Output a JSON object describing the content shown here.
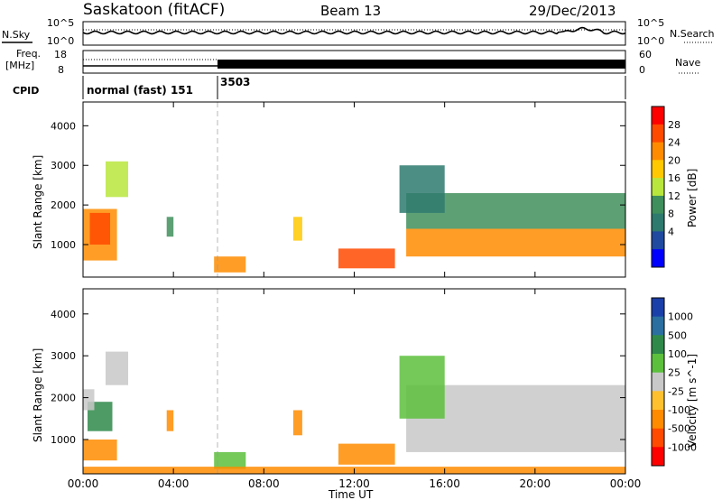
{
  "header": {
    "title": "Saskatoon (fitACF)",
    "beam": "Beam 13",
    "date": "29/Dec/2013"
  },
  "strip_labels": {
    "nsky": "N.Sky",
    "nsearch": "N.Search",
    "freq_top": "Freq.",
    "freq_unit": "[MHz]",
    "nave": "Nave",
    "cpid": "CPID",
    "nsky_top_tick": "10^5",
    "nsky_bottom_tick": "10^0",
    "nsearch_top_tick": "10^5",
    "nsearch_bottom_tick": "10^0",
    "freq_top_tick": "18",
    "freq_bottom_tick": "8",
    "nave_top_tick": "60",
    "nave_bottom_tick": "0"
  },
  "cpid_segments": [
    {
      "label": "normal (fast) 151",
      "start_hour": 0,
      "end_hour": 6
    },
    {
      "label": "3503",
      "start_hour": 6,
      "end_hour": 24
    }
  ],
  "axes": {
    "xlabel": "Time UT",
    "ylabel": "Slant Range [km]",
    "x_ticks": [
      "00:00",
      "04:00",
      "08:00",
      "12:00",
      "16:00",
      "20:00",
      "00:00"
    ],
    "y_ticks": [
      "1000",
      "2000",
      "3000",
      "4000"
    ]
  },
  "colorbars": {
    "power": {
      "label": "Power [dB]",
      "ticks": [
        "28",
        "24",
        "20",
        "16",
        "12",
        "8",
        "4"
      ],
      "colors": [
        "#ff0000",
        "#ff4a00",
        "#ff8c00",
        "#ffc800",
        "#b9e63c",
        "#3f8f5c",
        "#2e7a6e",
        "#1f4aa0",
        "#0000ff"
      ]
    },
    "velocity": {
      "label": "Velocity [m s^-1]",
      "ticks": [
        "1000",
        "500",
        "100",
        "25",
        "-25",
        "-100",
        "-500",
        "-1000"
      ],
      "colors": [
        "#1b3fa8",
        "#2a6fa0",
        "#2f8a4a",
        "#5cc03c",
        "#c8c8c8",
        "#ffc030",
        "#ff8c00",
        "#ff4a00",
        "#ff0000"
      ]
    }
  },
  "chart_data": [
    {
      "type": "heatmap",
      "title": "Power [dB]",
      "xlabel": "Time UT",
      "ylabel": "Slant Range [km]",
      "xlim": [
        0,
        24
      ],
      "ylim": [
        180,
        4600
      ],
      "zlim": [
        0,
        30
      ],
      "regions": [
        {
          "t0": 0.0,
          "t1": 1.5,
          "r0": 600,
          "r1": 1900,
          "value": 22
        },
        {
          "t0": 0.3,
          "t1": 1.2,
          "r0": 1000,
          "r1": 1800,
          "value": 27
        },
        {
          "t0": 1.0,
          "t1": 2.0,
          "r0": 2200,
          "r1": 3100,
          "value": 14
        },
        {
          "t0": 3.7,
          "t1": 4.0,
          "r0": 1200,
          "r1": 1700,
          "value": 10
        },
        {
          "t0": 5.8,
          "t1": 7.2,
          "r0": 300,
          "r1": 700,
          "value": 24
        },
        {
          "t0": 9.3,
          "t1": 9.7,
          "r0": 1100,
          "r1": 1700,
          "value": 18
        },
        {
          "t0": 11.3,
          "t1": 13.8,
          "r0": 400,
          "r1": 900,
          "value": 26
        },
        {
          "t0": 14.3,
          "t1": 24.0,
          "r0": 700,
          "r1": 1400,
          "value": 24
        },
        {
          "t0": 14.3,
          "t1": 24.0,
          "r0": 1400,
          "r1": 2300,
          "value": 12
        },
        {
          "t0": 14.0,
          "t1": 16.0,
          "r0": 1800,
          "r1": 3000,
          "value": 8
        }
      ]
    },
    {
      "type": "heatmap",
      "title": "Velocity [m s^-1]",
      "xlabel": "Time UT",
      "ylabel": "Slant Range [km]",
      "xlim": [
        0,
        24
      ],
      "ylim": [
        180,
        4600
      ],
      "zlim": [
        -1000,
        1000
      ],
      "regions": [
        {
          "t0": 0.0,
          "t1": 1.5,
          "r0": 500,
          "r1": 1000,
          "value": -200
        },
        {
          "t0": 0.2,
          "t1": 1.3,
          "r0": 1200,
          "r1": 1900,
          "value": 300
        },
        {
          "t0": 0.0,
          "t1": 0.5,
          "r0": 1700,
          "r1": 2200,
          "value": 0
        },
        {
          "t0": 1.0,
          "t1": 2.0,
          "r0": 2300,
          "r1": 3100,
          "value": 0
        },
        {
          "t0": 3.7,
          "t1": 4.0,
          "r0": 1200,
          "r1": 1700,
          "value": -300
        },
        {
          "t0": 5.8,
          "t1": 7.2,
          "r0": 300,
          "r1": 700,
          "value": 80
        },
        {
          "t0": 9.3,
          "t1": 9.7,
          "r0": 1100,
          "r1": 1700,
          "value": -300
        },
        {
          "t0": 11.3,
          "t1": 13.8,
          "r0": 400,
          "r1": 900,
          "value": -120
        },
        {
          "t0": 14.3,
          "t1": 24.0,
          "r0": 700,
          "r1": 2300,
          "value": 0
        },
        {
          "t0": 14.0,
          "t1": 16.0,
          "r0": 1500,
          "r1": 3000,
          "value": 70
        },
        {
          "t0": 0.0,
          "t1": 24.0,
          "r0": 180,
          "r1": 350,
          "value": -120
        }
      ]
    }
  ]
}
